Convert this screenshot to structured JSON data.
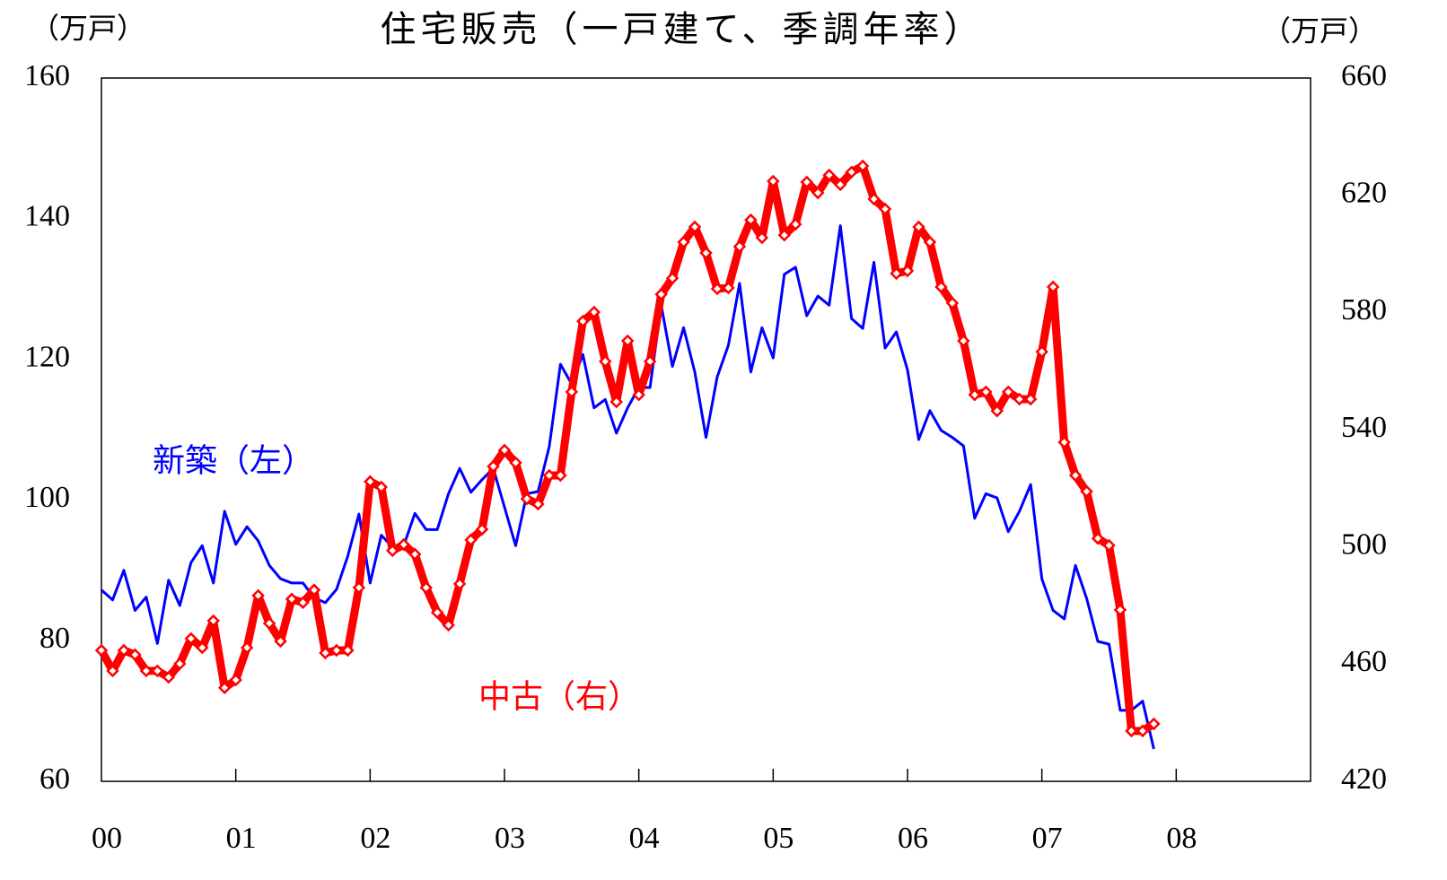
{
  "chart_data": {
    "type": "line",
    "title": "住宅販売（一戸建て、季調年率）",
    "y_label": "（万戸）",
    "y2_label": "（万戸）",
    "categories": [
      "00",
      null,
      null,
      null,
      null,
      null,
      null,
      null,
      null,
      null,
      null,
      null,
      "01",
      null,
      null,
      null,
      null,
      null,
      null,
      null,
      null,
      null,
      null,
      null,
      "02",
      null,
      null,
      null,
      null,
      null,
      null,
      null,
      null,
      null,
      null,
      null,
      "03",
      null,
      null,
      null,
      null,
      null,
      null,
      null,
      null,
      null,
      null,
      null,
      "04",
      null,
      null,
      null,
      null,
      null,
      null,
      null,
      null,
      null,
      null,
      null,
      "05",
      null,
      null,
      null,
      null,
      null,
      null,
      null,
      null,
      null,
      null,
      null,
      "06",
      null,
      null,
      null,
      null,
      null,
      null,
      null,
      null,
      null,
      null,
      null,
      "07",
      null,
      null,
      null,
      null,
      null,
      null,
      null,
      null,
      null,
      null,
      null,
      "08",
      null,
      null,
      null,
      null,
      null,
      null,
      null,
      null,
      null,
      null,
      null
    ],
    "ylim": [
      60,
      160
    ],
    "yticks": [
      60,
      80,
      100,
      120,
      140,
      160
    ],
    "y2lim": [
      420,
      660
    ],
    "y2ticks": [
      420,
      460,
      500,
      540,
      580,
      620,
      660
    ],
    "grid": false,
    "series": [
      {
        "name": "新築（左）",
        "color": "#0000ff",
        "values": [
          87.2,
          85.8,
          90.0,
          84.3,
          86.2,
          79.6,
          88.6,
          85.0,
          91.1,
          93.5,
          88.2,
          98.4,
          93.7,
          96.2,
          94.2,
          90.7,
          88.8,
          88.2,
          88.2,
          86.1,
          85.4,
          87.3,
          92.0,
          98.0,
          88.2,
          95.0,
          93.3,
          93.5,
          98.1,
          95.8,
          95.8,
          100.9,
          104.5,
          101.1,
          102.9,
          104.5,
          99.0,
          93.5,
          100.9,
          101.2,
          107.6,
          119.3,
          116.5,
          120.7,
          113.1,
          114.3,
          109.5,
          113.1,
          116.0,
          116.0,
          127.7,
          119.0,
          124.5,
          118.2,
          108.9,
          117.5,
          122.0,
          130.8,
          118.2,
          124.5,
          120.2,
          132.1,
          133.1,
          126.2,
          129.0,
          127.7,
          139.0,
          125.8,
          124.4,
          133.8,
          121.6,
          123.9,
          118.5,
          108.6,
          112.7,
          109.9,
          108.9,
          107.7,
          97.4,
          100.9,
          100.3,
          95.5,
          98.4,
          102.2,
          88.8,
          84.3,
          83.1,
          90.7,
          86.0,
          79.9,
          79.5,
          70.1,
          70.1,
          71.4,
          64.6,
          null,
          null,
          null,
          null,
          null,
          null,
          null,
          null,
          null,
          null,
          null,
          null,
          null
        ]
      },
      {
        "name": "中古（右）",
        "color": "#ff0000",
        "axis": "y2",
        "values": [
          464.7,
          457.7,
          464.7,
          463.2,
          457.7,
          457.7,
          455.5,
          460.1,
          468.7,
          465.6,
          474.8,
          451.9,
          454.6,
          465.6,
          483.4,
          473.9,
          467.8,
          482.2,
          481.0,
          485.3,
          463.8,
          464.7,
          464.7,
          486.1,
          522.3,
          520.4,
          498.7,
          500.8,
          497.5,
          486.1,
          477.6,
          473.3,
          487.4,
          502.4,
          506.0,
          527.5,
          533.0,
          528.7,
          516.4,
          514.6,
          524.4,
          524.4,
          552.9,
          577.0,
          580.1,
          563.3,
          549.5,
          570.3,
          551.9,
          563.3,
          586.2,
          591.7,
          604.0,
          609.2,
          600.3,
          588.1,
          588.4,
          602.5,
          611.6,
          605.5,
          624.8,
          606.4,
          610.1,
          624.5,
          620.8,
          626.9,
          623.6,
          627.9,
          630.0,
          618.7,
          615.3,
          593.3,
          594.2,
          609.2,
          604.0,
          588.7,
          583.2,
          570.3,
          551.9,
          552.9,
          546.4,
          552.9,
          550.4,
          550.4,
          566.6,
          588.7,
          535.7,
          524.4,
          518.9,
          502.9,
          500.5,
          478.5,
          437.2,
          437.2,
          439.6,
          null,
          null,
          null,
          null,
          null,
          null,
          null,
          null,
          null,
          null,
          null,
          null,
          null
        ]
      }
    ]
  }
}
